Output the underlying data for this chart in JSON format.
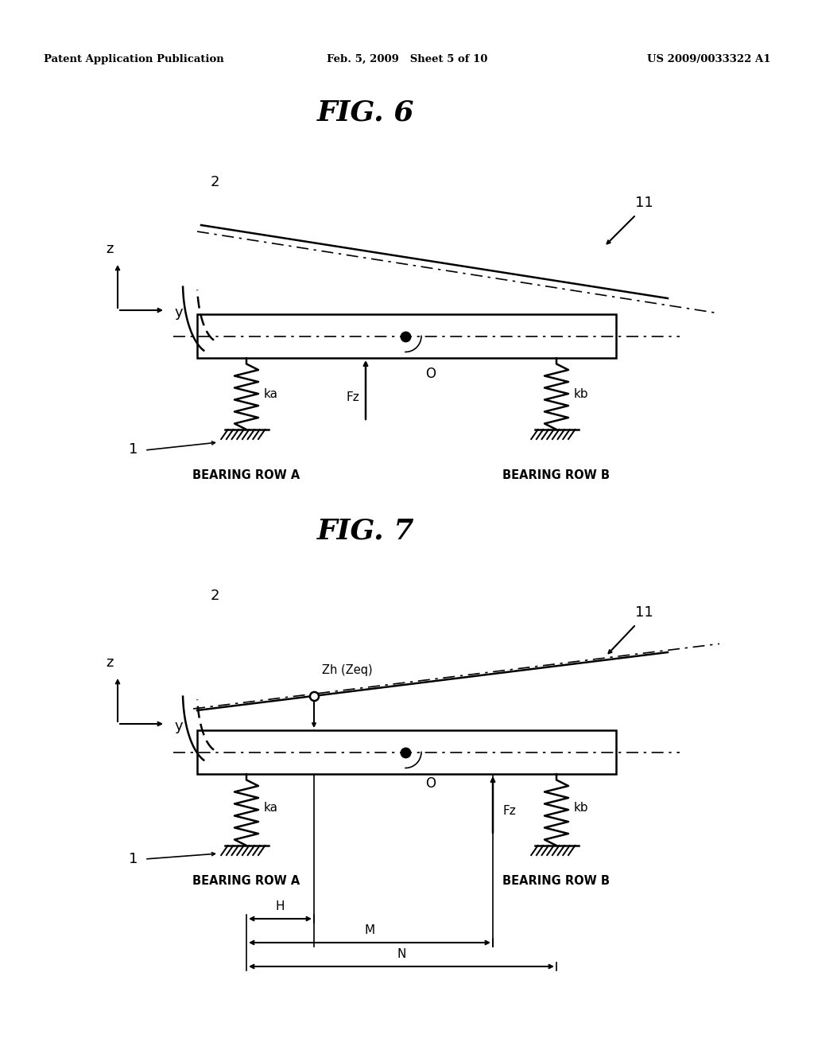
{
  "title1": "FIG. 6",
  "title2": "FIG. 7",
  "header_left": "Patent Application Publication",
  "header_mid": "Feb. 5, 2009   Sheet 5 of 10",
  "header_right": "US 2009/0033322 A1",
  "background_color": "#ffffff",
  "line_color": "#000000"
}
